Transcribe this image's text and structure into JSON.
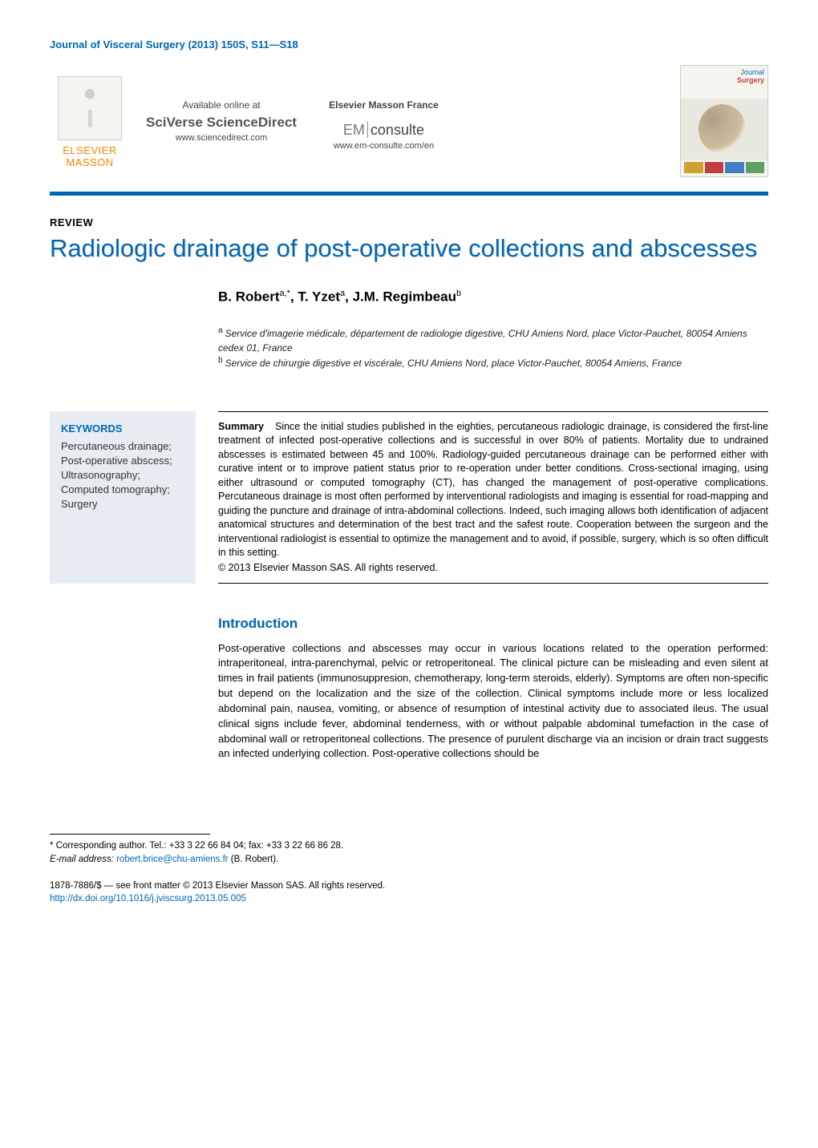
{
  "journal_header": "Journal of Visceral Surgery (2013) 150S, S11—S18",
  "top": {
    "elsevier_line1": "ELSEVIER",
    "elsevier_line2": "MASSON",
    "available_label": "Available online at",
    "sciverse": "SciVerse ScienceDirect",
    "sciverse_url": "www.sciencedirect.com",
    "emf_label": "Elsevier Masson France",
    "em_consulte_em": "EM",
    "em_consulte_txt": "consulte",
    "em_url": "www.em-consulte.com/en",
    "cover_journal": "Journal",
    "cover_surgery": "Surgery"
  },
  "review_label": "REVIEW",
  "title": "Radiologic drainage of post-operative collections and abscesses",
  "authors_html": "B. Robert",
  "author_sup1": "a,*",
  "author2": ", T. Yzet",
  "author_sup2": "a",
  "author3": ", J.M. Regimbeau",
  "author_sup3": "b",
  "affil_a": "Service d'imagerie médicale, département de radiologie digestive, CHU Amiens Nord, place Victor-Pauchet, 80054 Amiens cedex 01, France",
  "affil_b": "Service de chirurgie digestive et viscérale, CHU Amiens Nord, place Victor-Pauchet, 80054 Amiens, France",
  "keywords": {
    "heading": "KEYWORDS",
    "items": "Percutaneous drainage;\nPost-operative abscess;\nUltrasonography;\nComputed tomography;\nSurgery"
  },
  "summary": {
    "label": "Summary",
    "text": "Since the initial studies published in the eighties, percutaneous radiologic drainage, is considered the first-line treatment of infected post-operative collections and is successful in over 80% of patients. Mortality due to undrained abscesses is estimated between 45 and 100%. Radiology-guided percutaneous drainage can be performed either with curative intent or to improve patient status prior to re-operation under better conditions. Cross-sectional imaging, using either ultrasound or computed tomography (CT), has changed the management of post-operative complications. Percutaneous drainage is most often performed by interventional radiologists and imaging is essential for road-mapping and guiding the puncture and drainage of intra-abdominal collections. Indeed, such imaging allows both identification of adjacent anatomical structures and determination of the best tract and the safest route. Cooperation between the surgeon and the interventional radiologist is essential to optimize the management and to avoid, if possible, surgery, which is so often difficult in this setting.",
    "copyright": "© 2013 Elsevier Masson SAS. All rights reserved."
  },
  "intro": {
    "heading": "Introduction",
    "text": "Post-operative collections and abscesses may occur in various locations related to the operation performed: intraperitoneal, intra-parenchymal, pelvic or retroperitoneal. The clinical picture can be misleading and even silent at times in frail patients (immunosuppresion, chemotherapy, long-term steroids, elderly). Symptoms are often non-specific but depend on the localization and the size of the collection. Clinical symptoms include more or less localized abdominal pain, nausea, vomiting, or absence of resumption of intestinal activity due to associated ileus. The usual clinical signs include fever, abdominal tenderness, with or without palpable abdominal tumefaction in the case of abdominal wall or retroperitoneal collections. The presence of purulent discharge via an incision or drain tract suggests an infected underlying collection. Post-operative collections should be"
  },
  "footer": {
    "corresponding": "Corresponding author. Tel.: +33 3 22 66 84 04; fax: +33 3 22 66 86 28.",
    "email_label": "E-mail address:",
    "email": "robert.brice@chu-amiens.fr",
    "email_person": "(B. Robert).",
    "issn_line": "1878-7886/$ — see front matter © 2013 Elsevier Masson SAS. All rights reserved.",
    "doi": "http://dx.doi.org/10.1016/j.jviscsurg.2013.05.005"
  },
  "colors": {
    "primary_blue": "#0066b3",
    "elsevier_orange": "#ff8200",
    "keywords_bg": "#e6ecf2"
  }
}
